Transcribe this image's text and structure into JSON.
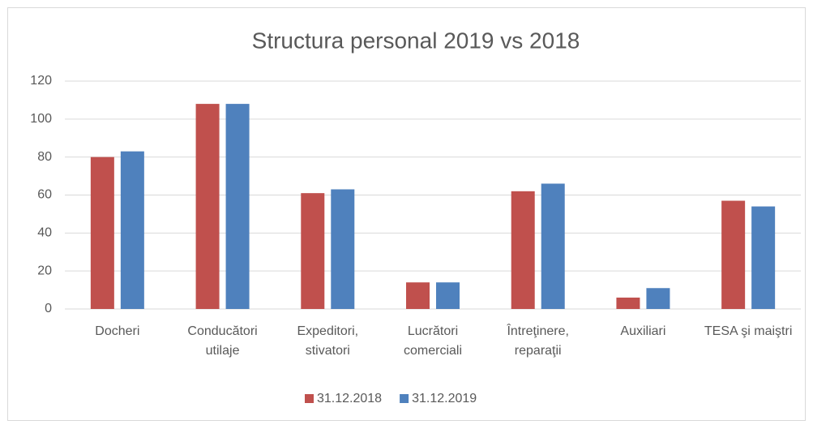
{
  "chart_data": {
    "type": "bar",
    "title": "Structura personal 2019 vs 2018",
    "categories": [
      "Docheri",
      "Conducători utilaje",
      "Expeditori, stivatori",
      "Lucrători comerciali",
      "Întreţinere, reparaţii",
      "Auxiliari",
      "TESA şi maiştri"
    ],
    "series": [
      {
        "name": "31.12.2018",
        "color": "#c0504d",
        "values": [
          80,
          108,
          61,
          14,
          62,
          6,
          57
        ]
      },
      {
        "name": "31.12.2019",
        "color": "#4f81bd",
        "values": [
          83,
          108,
          63,
          14,
          66,
          11,
          54
        ]
      }
    ],
    "ylim": [
      0,
      120
    ],
    "yticks": [
      0,
      20,
      40,
      60,
      80,
      100,
      120
    ],
    "grid": true,
    "legend": "bottom"
  }
}
